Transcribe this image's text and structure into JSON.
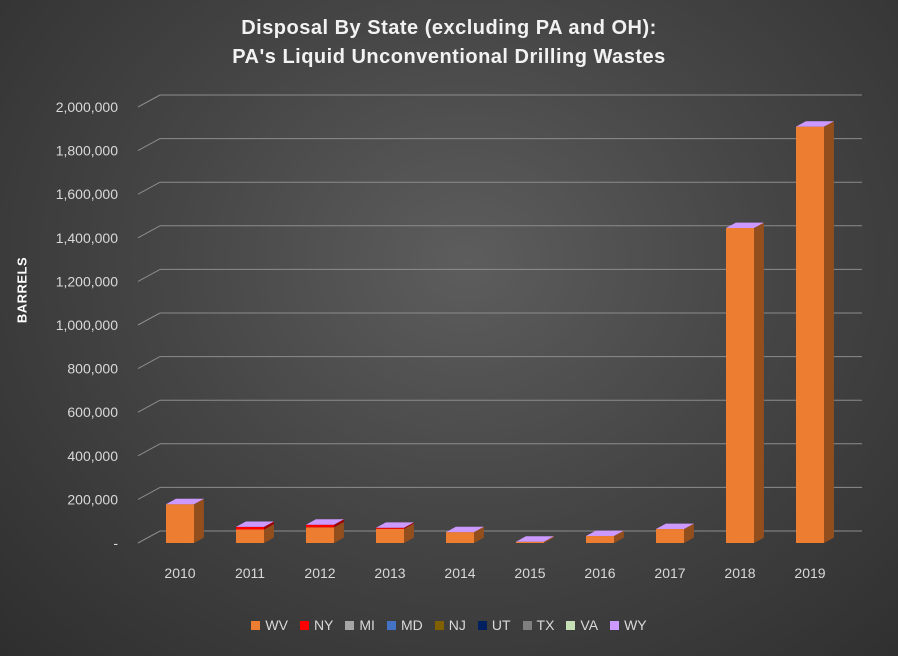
{
  "chart_data": {
    "type": "bar",
    "stacked": true,
    "three_d": true,
    "title_lines": [
      "Disposal By State (excluding PA and OH):",
      "PA's Liquid Unconventional Drilling Wastes"
    ],
    "xlabel": "",
    "ylabel": "BARRELS",
    "ylim": [
      0,
      2000000
    ],
    "yticks": [
      {
        "value": 0,
        "label": "-"
      },
      {
        "value": 200000,
        "label": "200,000"
      },
      {
        "value": 400000,
        "label": "400,000"
      },
      {
        "value": 600000,
        "label": "600,000"
      },
      {
        "value": 800000,
        "label": "800,000"
      },
      {
        "value": 1000000,
        "label": "1,000,000"
      },
      {
        "value": 1200000,
        "label": "1,200,000"
      },
      {
        "value": 1400000,
        "label": "1,400,000"
      },
      {
        "value": 1600000,
        "label": "1,600,000"
      },
      {
        "value": 1800000,
        "label": "1,800,000"
      },
      {
        "value": 2000000,
        "label": "2,000,000"
      }
    ],
    "grid": true,
    "legend_position": "bottom",
    "categories": [
      "2010",
      "2011",
      "2012",
      "2013",
      "2014",
      "2015",
      "2016",
      "2017",
      "2018",
      "2019"
    ],
    "series": [
      {
        "name": "WV",
        "color": "#ed7d31",
        "values": [
          178000,
          62000,
          72000,
          65000,
          50000,
          6000,
          32000,
          64000,
          1445000,
          1910000
        ]
      },
      {
        "name": "NY",
        "color": "#ff0000",
        "values": [
          0,
          12000,
          12000,
          5000,
          0,
          0,
          0,
          0,
          0,
          0
        ]
      },
      {
        "name": "MI",
        "color": "#a5a5a5",
        "values": [
          0,
          0,
          0,
          0,
          0,
          0,
          0,
          0,
          0,
          0
        ]
      },
      {
        "name": "MD",
        "color": "#4472c4",
        "values": [
          0,
          0,
          0,
          0,
          0,
          0,
          0,
          0,
          0,
          0
        ]
      },
      {
        "name": "NJ",
        "color": "#806000",
        "values": [
          0,
          0,
          0,
          0,
          0,
          0,
          0,
          0,
          0,
          0
        ]
      },
      {
        "name": "UT",
        "color": "#002060",
        "values": [
          0,
          0,
          0,
          0,
          0,
          0,
          0,
          0,
          0,
          0
        ]
      },
      {
        "name": "TX",
        "color": "#7f7f7f",
        "values": [
          0,
          0,
          0,
          0,
          0,
          0,
          0,
          0,
          0,
          0
        ]
      },
      {
        "name": "VA",
        "color": "#c5e0b4",
        "values": [
          0,
          0,
          0,
          0,
          0,
          0,
          0,
          0,
          0,
          0
        ]
      },
      {
        "name": "WY",
        "color": "#cc99ff",
        "values": [
          0,
          0,
          0,
          0,
          0,
          0,
          0,
          0,
          0,
          0
        ]
      }
    ]
  }
}
